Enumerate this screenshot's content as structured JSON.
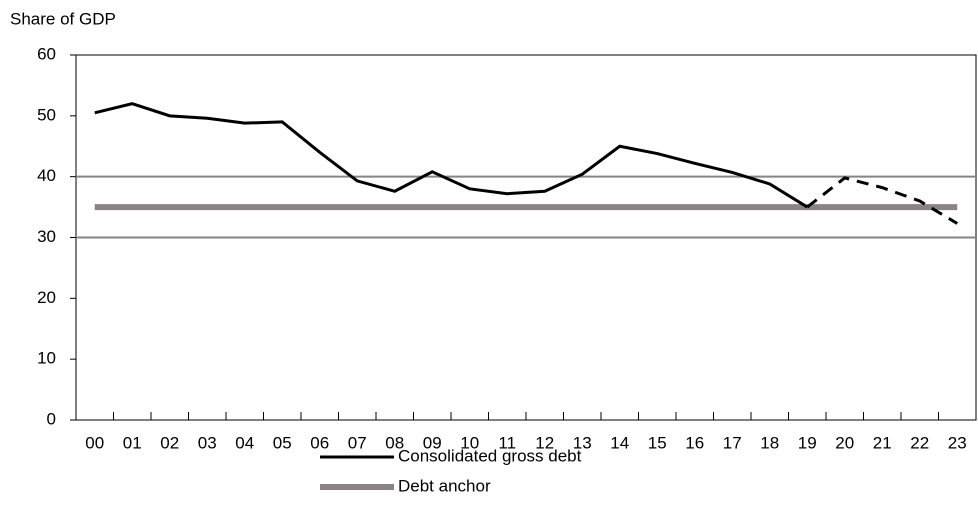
{
  "chart_data": {
    "type": "line",
    "y_label": "Share of GDP",
    "categories": [
      "00",
      "01",
      "02",
      "03",
      "04",
      "05",
      "06",
      "07",
      "08",
      "09",
      "10",
      "11",
      "12",
      "13",
      "14",
      "15",
      "16",
      "17",
      "18",
      "19",
      "20",
      "21",
      "22",
      "23"
    ],
    "series": [
      {
        "name": "Consolidated gross debt",
        "color": "#000000",
        "width": 3,
        "dash_from_index": 19,
        "values": [
          50.5,
          52,
          50,
          49.6,
          48.8,
          49,
          44,
          39.3,
          37.6,
          40.8,
          38,
          37.2,
          37.6,
          40.4,
          45,
          43.8,
          42.2,
          40.7,
          38.8,
          35,
          39.8,
          38.2,
          36,
          32.3
        ]
      },
      {
        "name": "Debt anchor",
        "color": "#8c8281",
        "width": 6,
        "values": [
          35,
          35,
          35,
          35,
          35,
          35,
          35,
          35,
          35,
          35,
          35,
          35,
          35,
          35,
          35,
          35,
          35,
          35,
          35,
          35,
          35,
          35,
          35,
          35
        ]
      }
    ],
    "reference_lines": [
      30,
      40
    ],
    "reference_color": "#8c8281",
    "ylim": [
      0,
      60
    ],
    "yticks": [
      0,
      10,
      20,
      30,
      40,
      50,
      60
    ]
  }
}
